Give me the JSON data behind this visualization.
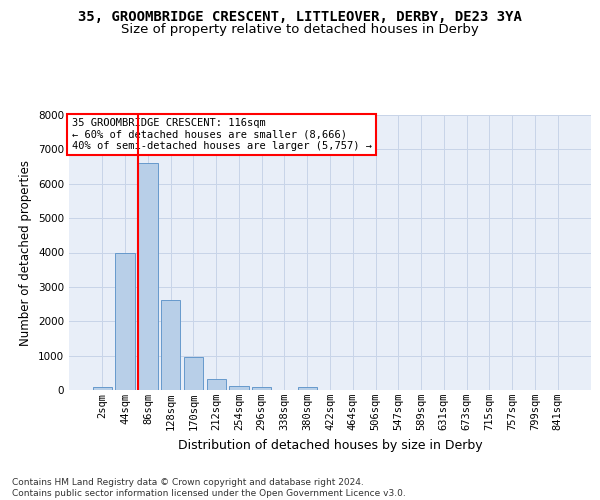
{
  "title1": "35, GROOMBRIDGE CRESCENT, LITTLEOVER, DERBY, DE23 3YA",
  "title2": "Size of property relative to detached houses in Derby",
  "xlabel": "Distribution of detached houses by size in Derby",
  "ylabel": "Number of detached properties",
  "bin_labels": [
    "2sqm",
    "44sqm",
    "86sqm",
    "128sqm",
    "170sqm",
    "212sqm",
    "254sqm",
    "296sqm",
    "338sqm",
    "380sqm",
    "422sqm",
    "464sqm",
    "506sqm",
    "547sqm",
    "589sqm",
    "631sqm",
    "673sqm",
    "715sqm",
    "757sqm",
    "799sqm",
    "841sqm"
  ],
  "bar_values": [
    75,
    3990,
    6600,
    2630,
    950,
    310,
    130,
    95,
    0,
    95,
    0,
    0,
    0,
    0,
    0,
    0,
    0,
    0,
    0,
    0,
    0
  ],
  "bar_color": "#b8cfe8",
  "bar_edge_color": "#6699cc",
  "grid_color": "#c8d4e8",
  "bg_color": "#e8eef8",
  "vline_color": "red",
  "vline_bin_index": 2,
  "annotation_text": "35 GROOMBRIDGE CRESCENT: 116sqm\n← 60% of detached houses are smaller (8,666)\n40% of semi-detached houses are larger (5,757) →",
  "annotation_box_color": "white",
  "annotation_box_edge": "red",
  "ylim": [
    0,
    8000
  ],
  "yticks": [
    0,
    1000,
    2000,
    3000,
    4000,
    5000,
    6000,
    7000,
    8000
  ],
  "footer": "Contains HM Land Registry data © Crown copyright and database right 2024.\nContains public sector information licensed under the Open Government Licence v3.0.",
  "title1_fontsize": 10,
  "title2_fontsize": 9.5,
  "xlabel_fontsize": 9,
  "ylabel_fontsize": 8.5,
  "tick_fontsize": 7.5,
  "annotation_fontsize": 7.5,
  "footer_fontsize": 6.5
}
